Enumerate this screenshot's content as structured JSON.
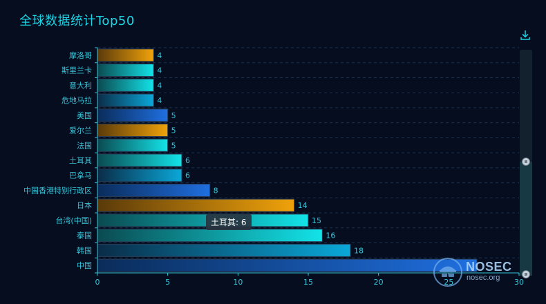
{
  "title": "全球数据统计Top50",
  "toolbox": {
    "download_icon": "download-icon"
  },
  "tooltip": {
    "text": "土耳其: 6"
  },
  "watermark": {
    "brand": "NOSEC",
    "site": "nosec.org"
  },
  "colors": {
    "background": "#050d1f",
    "axis": "#36c6da",
    "orange": [
      "#5a3a0a",
      "#f0a20a"
    ],
    "cyan": [
      "#0a4a50",
      "#12e3e8"
    ],
    "teal": [
      "#0a2c48",
      "#0aa8d8"
    ],
    "blue": [
      "#0a2c5a",
      "#1f6fe0"
    ]
  },
  "chart_data": {
    "type": "bar",
    "orientation": "horizontal",
    "categories": [
      "摩洛哥",
      "斯里兰卡",
      "意大利",
      "危地马拉",
      "美国",
      "爱尔兰",
      "法国",
      "土耳其",
      "巴拿马",
      "中国香港特别行政区",
      "日本",
      "台湾(中国)",
      "泰国",
      "韩国",
      "中国"
    ],
    "values": [
      4,
      4,
      4,
      4,
      5,
      5,
      5,
      6,
      6,
      8,
      14,
      15,
      16,
      18,
      27
    ],
    "color_groups": [
      "orange",
      "cyan",
      "cyan",
      "teal",
      "blue",
      "orange",
      "cyan",
      "cyan",
      "teal",
      "blue",
      "orange",
      "cyan",
      "cyan",
      "teal",
      "blue"
    ],
    "xlim": [
      0,
      30
    ],
    "xticks": [
      "0",
      "5",
      "10",
      "15",
      "20",
      "25",
      "30"
    ],
    "value_labels": [
      "4",
      "4",
      "4",
      "4",
      "5",
      "5",
      "5",
      "6",
      "6",
      "8",
      "14",
      "15",
      "16",
      "18",
      ""
    ],
    "grid": "dashed-horizontal",
    "datazoom": {
      "range": [
        0,
        100
      ]
    }
  }
}
